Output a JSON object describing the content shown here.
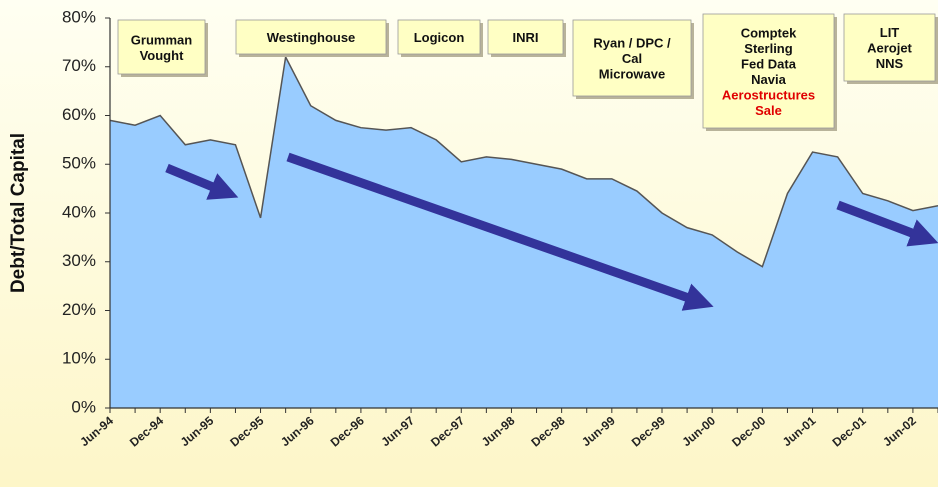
{
  "chart_data": {
    "type": "area",
    "y_label": "Debt/Total Capital",
    "categories": [
      "Jun-94",
      null,
      "Dec-94",
      null,
      "Jun-95",
      null,
      "Dec-95",
      null,
      "Jun-96",
      null,
      "Dec-96",
      null,
      "Jun-97",
      null,
      "Dec-97",
      null,
      "Jun-98",
      null,
      "Dec-98",
      null,
      "Jun-99",
      null,
      "Dec-99",
      null,
      "Jun-00",
      null,
      "Dec-00",
      null,
      "Jun-01",
      null,
      "Dec-01",
      null,
      "Jun-02",
      null
    ],
    "values": [
      59,
      58,
      60,
      54,
      55,
      54,
      39,
      72,
      62,
      59,
      57.5,
      57,
      57.5,
      55,
      50.5,
      51.5,
      51,
      50,
      49,
      47,
      47,
      44.5,
      40,
      37,
      35.5,
      32,
      29,
      44,
      52.5,
      51.5,
      44,
      42.5,
      40.5,
      41.5
    ],
    "color": "#99ccff",
    "ylim": [
      0,
      80
    ],
    "yticks": [
      {
        "value": 0,
        "label": "0%"
      },
      {
        "value": 10,
        "label": "10%"
      },
      {
        "value": 20,
        "label": "20%"
      },
      {
        "value": 30,
        "label": "30%"
      },
      {
        "value": 40,
        "label": "40%"
      },
      {
        "value": 50,
        "label": "50%"
      },
      {
        "value": 60,
        "label": "60%"
      },
      {
        "value": 70,
        "label": "70%"
      },
      {
        "value": 80,
        "label": "80%"
      }
    ],
    "highlight_color": "#e00000",
    "annotations": [
      {
        "lines": [
          "Grumman",
          "Vought"
        ]
      },
      {
        "lines": [
          "Westinghouse"
        ]
      },
      {
        "lines": [
          "Logicon"
        ]
      },
      {
        "lines": [
          "INRI"
        ]
      },
      {
        "lines": [
          "Ryan / DPC /",
          "Cal",
          "Microwave"
        ]
      },
      {
        "lines": [
          "Comptek",
          "Sterling",
          "Fed Data",
          "Navia"
        ],
        "red_lines": [
          "Aerostructures",
          "Sale"
        ]
      },
      {
        "lines": [
          "LIT",
          "Aerojet",
          "NNS"
        ]
      }
    ]
  }
}
